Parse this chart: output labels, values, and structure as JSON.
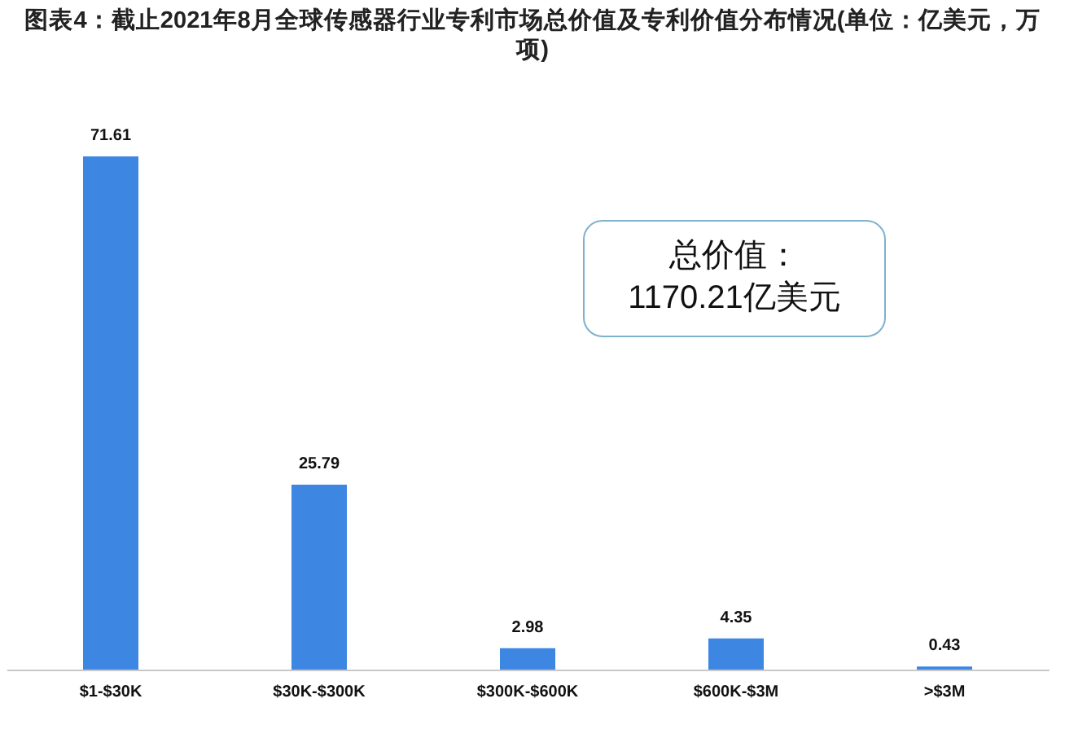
{
  "chart_data": {
    "type": "bar",
    "title": "图表4：截止2021年8月全球传感器行业专利市场总价值及专利价值分布情况(单位：亿美元，万项)",
    "categories": [
      "$1-$30K",
      "$30K-$300K",
      "$300K-$600K",
      "$600K-$3M",
      ">$3M"
    ],
    "values": [
      71.61,
      25.79,
      2.98,
      4.35,
      0.43
    ],
    "color": "#3d86e2",
    "data_labels": true,
    "annotations": [
      "总价值：1170.21亿美元"
    ]
  }
}
